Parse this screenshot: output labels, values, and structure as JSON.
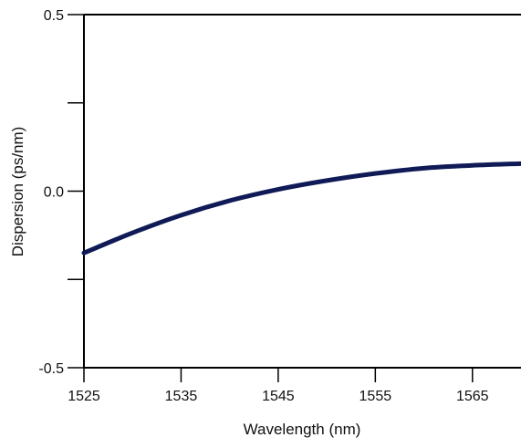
{
  "chart_data": {
    "type": "line",
    "title": "",
    "xlabel": "Wavelength (nm)",
    "ylabel": "Dispersion (ps/nm)",
    "xlim": [
      1525,
      1570
    ],
    "ylim": [
      -0.5,
      0.5
    ],
    "x_ticks": [
      1525,
      1535,
      1545,
      1555,
      1565
    ],
    "x_tick_labels": [
      "1525",
      "1535",
      "1545",
      "1555",
      "1565"
    ],
    "y_ticks": [
      -0.5,
      0.0,
      0.5
    ],
    "y_tick_labels": [
      "-0.5",
      "0.0",
      "0.5"
    ],
    "y_minor_ticks": [
      -0.25,
      0.25
    ],
    "grid": false,
    "series": [
      {
        "color": "#0f1a57",
        "x": [
          1525,
          1530,
          1535,
          1540,
          1545,
          1550,
          1555,
          1560,
          1565,
          1570
        ],
        "y": [
          -0.175,
          -0.118,
          -0.068,
          -0.027,
          0.005,
          0.03,
          0.05,
          0.065,
          0.073,
          0.078
        ]
      }
    ]
  }
}
